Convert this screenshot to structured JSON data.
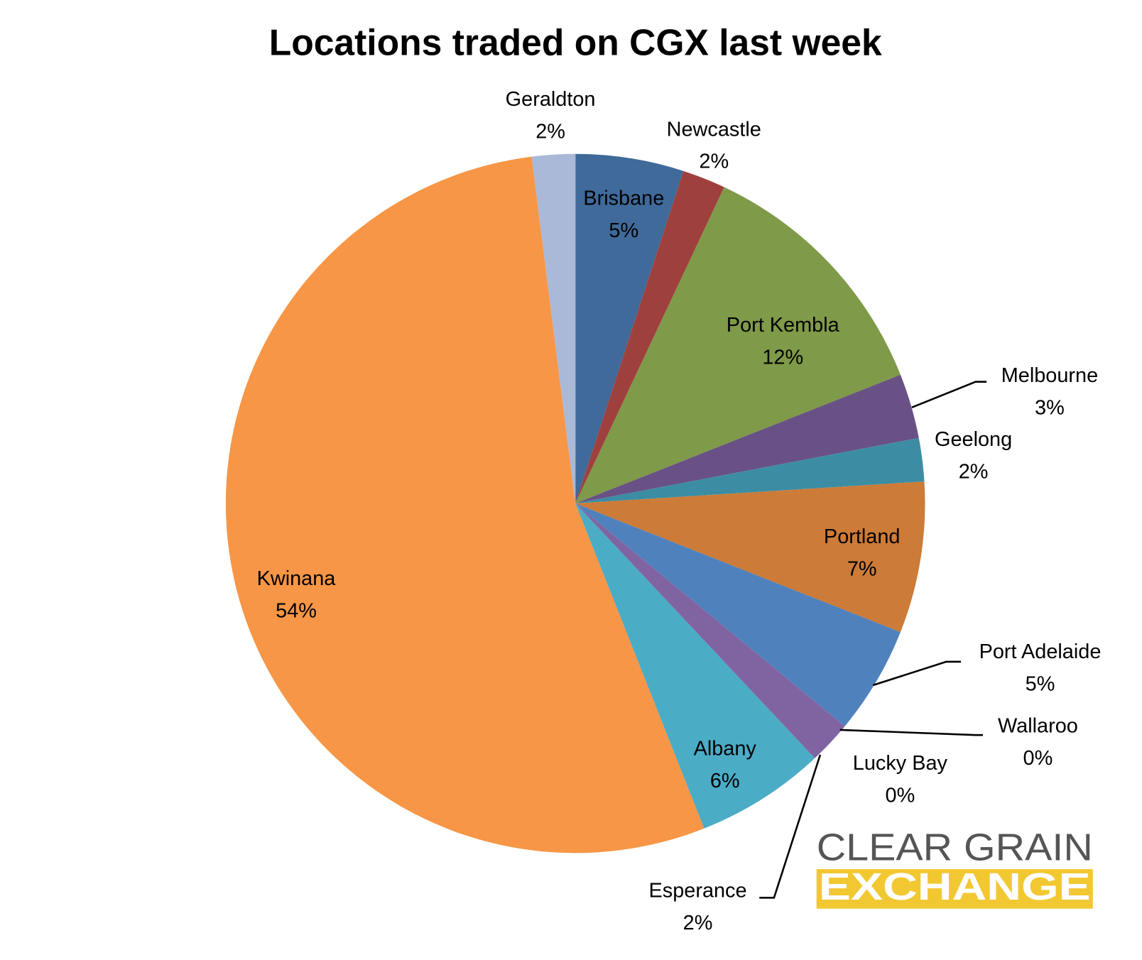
{
  "chart_data": {
    "type": "pie",
    "title": "Locations traded on CGX last week",
    "categories": [
      "Brisbane",
      "Newcastle",
      "Port Kembla",
      "Melbourne",
      "Geelong",
      "Portland",
      "Port Adelaide",
      "Wallaroo",
      "Lucky Bay",
      "Esperance",
      "Albany",
      "Kwinana",
      "Geraldton"
    ],
    "values": [
      5,
      2,
      12,
      3,
      2,
      7,
      5,
      0,
      0,
      2,
      6,
      54,
      2
    ],
    "value_labels": [
      "5%",
      "2%",
      "12%",
      "3%",
      "2%",
      "7%",
      "5%",
      "0%",
      "0%",
      "2%",
      "6%",
      "54%",
      "2%"
    ],
    "colors": [
      "#3f6a9a",
      "#9e413e",
      "#7f9a48",
      "#695185",
      "#3c8da3",
      "#cc7b38",
      "#4f81bd",
      "#c0504d",
      "#9bbb59",
      "#8064a2",
      "#4bacc6",
      "#f79646",
      "#aab9d7"
    ]
  },
  "logo": {
    "line1": "CLEAR GRAIN",
    "line2": "EXCHANGE"
  }
}
